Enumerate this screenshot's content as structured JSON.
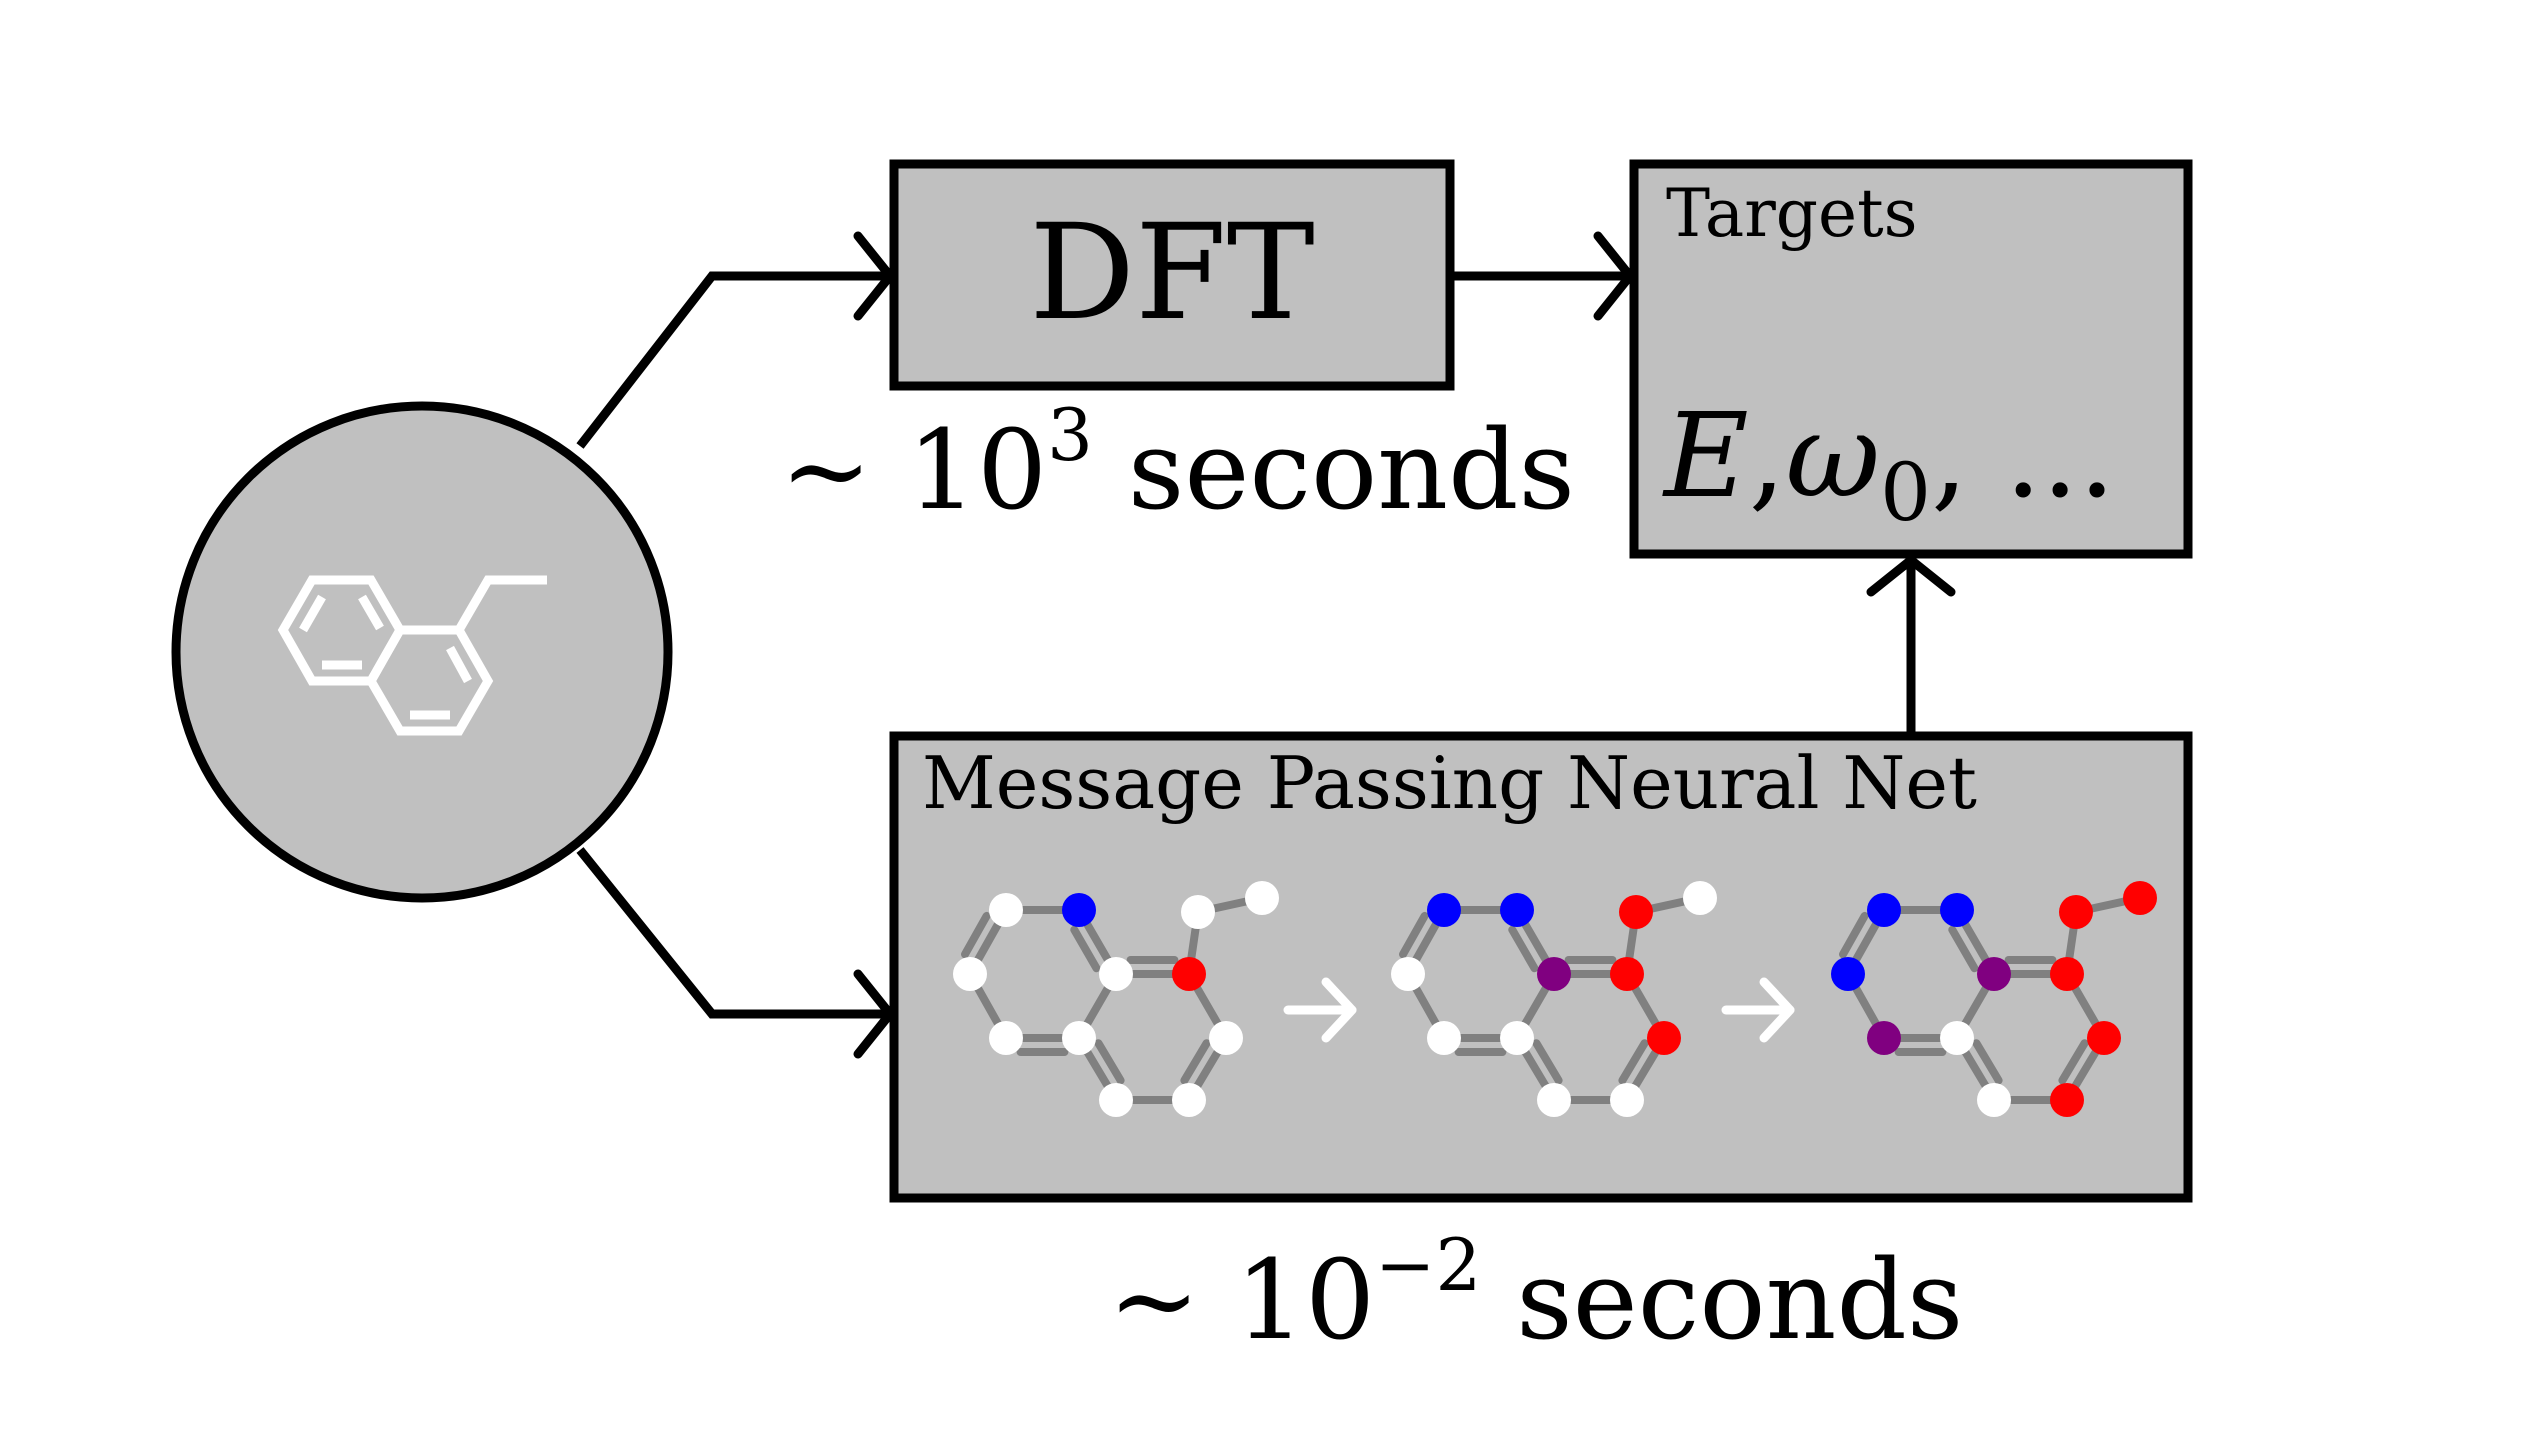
{
  "dft": {
    "label": "DFT",
    "time_base": "~ 10",
    "time_exp": "3",
    "time_unit": " seconds"
  },
  "targets": {
    "title": "Targets",
    "E": "E",
    "comma1": ",",
    "omega": "ω",
    "omega_sub": "0",
    "rest": ", ..."
  },
  "mpnn": {
    "title": "Message Passing Neural Net",
    "time_base": "~ 10",
    "time_exp": "−2",
    "time_unit": " seconds"
  },
  "colors": {
    "box_fill": "#c0c0c0",
    "node_white": "#ffffff",
    "node_blue": "#0000ff",
    "node_red": "#ff0000",
    "node_purple": "#800080",
    "bond": "#808080"
  },
  "molecule_steps": [
    {
      "step": 1,
      "nodes": [
        "white",
        "blue",
        "white",
        "white",
        "white",
        "white",
        "red",
        "white",
        "white",
        "white",
        "white",
        "white"
      ]
    },
    {
      "step": 2,
      "nodes": [
        "blue",
        "blue",
        "white",
        "purple",
        "white",
        "white",
        "red",
        "red",
        "white",
        "white",
        "red",
        "white"
      ]
    },
    {
      "step": 3,
      "nodes": [
        "blue",
        "blue",
        "blue",
        "purple",
        "purple",
        "white",
        "red",
        "red",
        "red",
        "white",
        "red",
        "red"
      ]
    }
  ]
}
